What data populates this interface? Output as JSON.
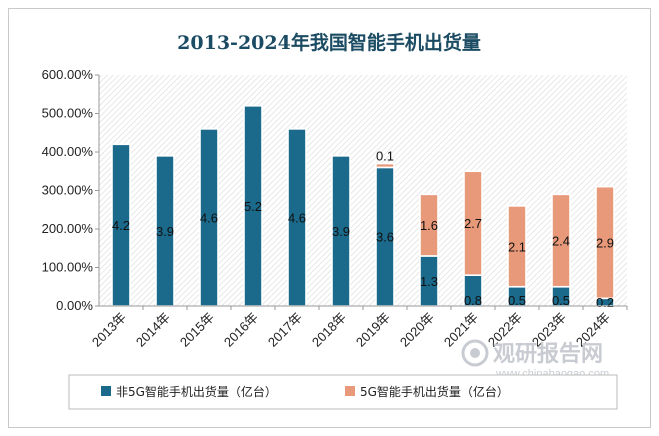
{
  "chart_data": {
    "type": "bar",
    "stacked": true,
    "title": "2013-2024年我国智能手机出货量",
    "categories": [
      "2013年",
      "2014年",
      "2015年",
      "2016年",
      "2017年",
      "2018年",
      "2019年",
      "2020年",
      "2021年",
      "2022年",
      "2023年",
      "2024年"
    ],
    "yticks": [
      "0.00%",
      "100.00%",
      "200.00%",
      "300.00%",
      "400.00%",
      "500.00%",
      "600.00%"
    ],
    "ylim": [
      0,
      6
    ],
    "series": [
      {
        "name": "非5G智能手机出货量（亿台）",
        "color": "#1b6a8c",
        "values": [
          4.2,
          3.9,
          4.6,
          5.2,
          4.6,
          3.9,
          3.6,
          1.3,
          0.8,
          0.5,
          0.5,
          0.2
        ]
      },
      {
        "name": "5G智能手机出货量（亿台）",
        "color": "#e8997a",
        "values": [
          null,
          null,
          null,
          null,
          null,
          null,
          0.1,
          1.6,
          2.7,
          2.1,
          2.4,
          2.9
        ]
      }
    ],
    "legend_position": "bottom",
    "grid": false
  },
  "watermark": {
    "brand": "观研报告网",
    "url": "www.chinabaogao.com"
  }
}
